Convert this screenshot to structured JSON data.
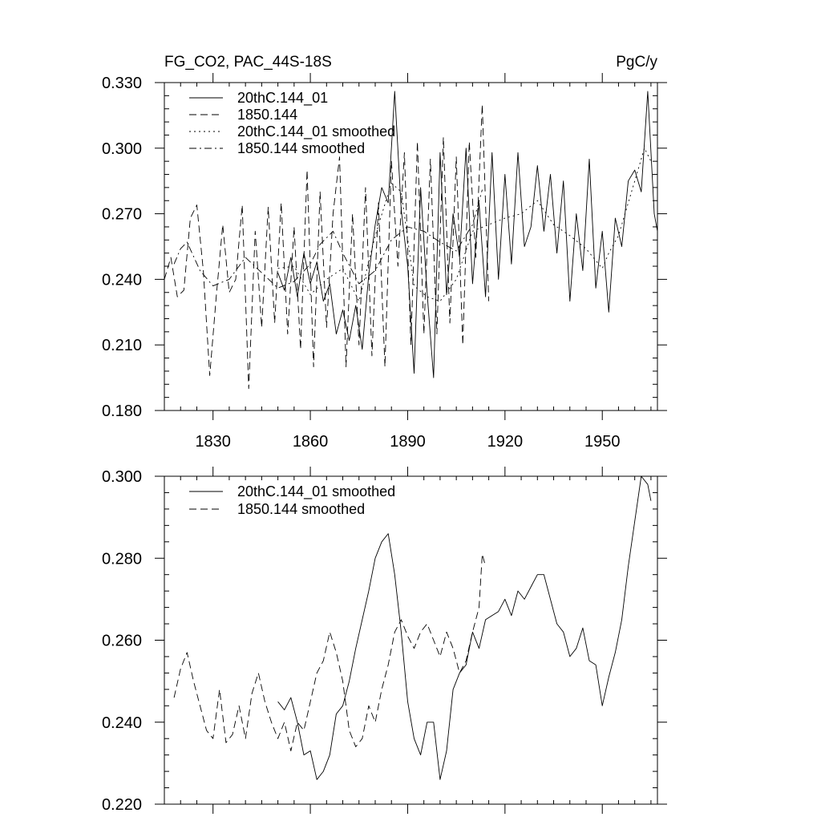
{
  "chart_data": [
    {
      "type": "line",
      "title_left": "FG_CO2, PAC_44S-18S",
      "title_right": "PgC/y",
      "xlabel": "",
      "ylabel": "",
      "xlim": [
        1815,
        1967
      ],
      "ylim": [
        0.18,
        0.33
      ],
      "xticks": [
        1830,
        1860,
        1890,
        1920,
        1950
      ],
      "yticks": [
        0.18,
        0.21,
        0.24,
        0.27,
        0.3,
        0.33
      ],
      "ytick_labels": [
        "0.180",
        "0.210",
        "0.240",
        "0.270",
        "0.300",
        "0.330"
      ],
      "legend": [
        "20thC.144_01",
        "1850.144",
        "20thC.144_01 smoothed",
        "1850.144 smoothed"
      ],
      "series": [
        {
          "name": "20thC.144_01",
          "style": "solid",
          "x": [
            1850,
            1852,
            1854,
            1856,
            1858,
            1860,
            1862,
            1864,
            1866,
            1868,
            1870,
            1872,
            1874,
            1876,
            1878,
            1880,
            1882,
            1884,
            1886,
            1888,
            1890,
            1892,
            1894,
            1896,
            1898,
            1900,
            1902,
            1904,
            1906,
            1908,
            1910,
            1912,
            1914,
            1916,
            1918,
            1920,
            1922,
            1924,
            1926,
            1928,
            1930,
            1932,
            1934,
            1936,
            1938,
            1940,
            1942,
            1944,
            1946,
            1948,
            1950,
            1952,
            1954,
            1956,
            1958,
            1960,
            1962,
            1964,
            1966,
            1967
          ],
          "values": [
            0.243,
            0.235,
            0.25,
            0.232,
            0.252,
            0.238,
            0.248,
            0.23,
            0.238,
            0.215,
            0.226,
            0.212,
            0.228,
            0.208,
            0.242,
            0.265,
            0.282,
            0.275,
            0.326,
            0.272,
            0.246,
            0.197,
            0.282,
            0.234,
            0.195,
            0.298,
            0.233,
            0.27,
            0.25,
            0.3,
            0.238,
            0.275,
            0.232,
            0.298,
            0.24,
            0.288,
            0.247,
            0.298,
            0.255,
            0.264,
            0.292,
            0.262,
            0.288,
            0.252,
            0.285,
            0.23,
            0.27,
            0.244,
            0.295,
            0.236,
            0.262,
            0.225,
            0.268,
            0.255,
            0.285,
            0.29,
            0.28,
            0.326,
            0.27,
            0.262
          ]
        },
        {
          "name": "1850.144",
          "style": "dashed",
          "x": [
            1815,
            1817,
            1819,
            1821,
            1823,
            1825,
            1827,
            1829,
            1831,
            1833,
            1835,
            1837,
            1839,
            1841,
            1843,
            1845,
            1847,
            1849,
            1851,
            1853,
            1855,
            1857,
            1859,
            1861,
            1863,
            1865,
            1867,
            1869,
            1871,
            1873,
            1875,
            1877,
            1879,
            1881,
            1883,
            1885,
            1887,
            1889,
            1891,
            1893,
            1895,
            1897,
            1899,
            1901,
            1903,
            1905,
            1907,
            1909,
            1911,
            1913,
            1915
          ],
          "values": [
            0.24,
            0.25,
            0.232,
            0.235,
            0.268,
            0.274,
            0.244,
            0.196,
            0.232,
            0.265,
            0.234,
            0.24,
            0.274,
            0.19,
            0.262,
            0.218,
            0.273,
            0.22,
            0.275,
            0.215,
            0.264,
            0.208,
            0.29,
            0.2,
            0.28,
            0.218,
            0.27,
            0.296,
            0.2,
            0.27,
            0.21,
            0.282,
            0.205,
            0.275,
            0.2,
            0.294,
            0.246,
            0.298,
            0.21,
            0.303,
            0.215,
            0.295,
            0.215,
            0.305,
            0.22,
            0.296,
            0.21,
            0.303,
            0.25,
            0.32,
            0.23
          ]
        },
        {
          "name": "20thC.144_01 smoothed",
          "style": "dotted",
          "x": [
            1850,
            1855,
            1860,
            1865,
            1870,
            1875,
            1880,
            1885,
            1888,
            1892,
            1896,
            1900,
            1905,
            1910,
            1915,
            1920,
            1925,
            1930,
            1935,
            1940,
            1945,
            1950,
            1952,
            1955,
            1960,
            1963,
            1965
          ],
          "values": [
            0.245,
            0.246,
            0.233,
            0.24,
            0.245,
            0.23,
            0.26,
            0.284,
            0.28,
            0.237,
            0.232,
            0.23,
            0.24,
            0.262,
            0.265,
            0.268,
            0.27,
            0.276,
            0.265,
            0.26,
            0.254,
            0.245,
            0.252,
            0.26,
            0.285,
            0.3,
            0.294
          ]
        },
        {
          "name": "1850.144 smoothed",
          "style": "dashdot",
          "x": [
            1818,
            1820,
            1822,
            1826,
            1830,
            1835,
            1840,
            1845,
            1850,
            1855,
            1860,
            1863,
            1867,
            1870,
            1875,
            1880,
            1885,
            1890,
            1895,
            1900,
            1905,
            1910,
            1913
          ],
          "values": [
            0.247,
            0.254,
            0.257,
            0.244,
            0.237,
            0.24,
            0.25,
            0.243,
            0.236,
            0.239,
            0.247,
            0.256,
            0.262,
            0.252,
            0.238,
            0.244,
            0.258,
            0.264,
            0.262,
            0.257,
            0.253,
            0.265,
            0.281
          ]
        }
      ]
    },
    {
      "type": "line",
      "xlim": [
        1815,
        1967
      ],
      "ylim": [
        0.22,
        0.3
      ],
      "xticks": [
        1830,
        1860,
        1890,
        1920,
        1950
      ],
      "yticks": [
        0.22,
        0.24,
        0.26,
        0.28,
        0.3
      ],
      "ytick_labels": [
        "0.220",
        "0.240",
        "0.260",
        "0.280",
        "0.300"
      ],
      "legend": [
        "20thC.144_01 smoothed",
        "1850.144 smoothed"
      ],
      "series": [
        {
          "name": "20thC.144_01 smoothed",
          "style": "solid",
          "x": [
            1850,
            1852,
            1854,
            1856,
            1858,
            1860,
            1862,
            1864,
            1866,
            1868,
            1870,
            1872,
            1874,
            1876,
            1878,
            1880,
            1882,
            1884,
            1886,
            1888,
            1890,
            1892,
            1894,
            1896,
            1898,
            1900,
            1902,
            1904,
            1906,
            1908,
            1910,
            1912,
            1914,
            1916,
            1918,
            1920,
            1922,
            1924,
            1926,
            1928,
            1930,
            1932,
            1934,
            1936,
            1938,
            1940,
            1942,
            1944,
            1946,
            1948,
            1950,
            1952,
            1954,
            1956,
            1958,
            1960,
            1962,
            1964,
            1965
          ],
          "values": [
            0.245,
            0.243,
            0.246,
            0.24,
            0.232,
            0.233,
            0.226,
            0.228,
            0.232,
            0.242,
            0.244,
            0.25,
            0.258,
            0.265,
            0.272,
            0.28,
            0.284,
            0.286,
            0.276,
            0.262,
            0.245,
            0.236,
            0.232,
            0.24,
            0.24,
            0.226,
            0.233,
            0.248,
            0.252,
            0.254,
            0.262,
            0.258,
            0.265,
            0.266,
            0.267,
            0.27,
            0.266,
            0.272,
            0.27,
            0.273,
            0.276,
            0.276,
            0.27,
            0.264,
            0.262,
            0.256,
            0.258,
            0.263,
            0.255,
            0.254,
            0.244,
            0.251,
            0.257,
            0.265,
            0.278,
            0.289,
            0.3,
            0.298,
            0.294
          ]
        },
        {
          "name": "1850.144 smoothed",
          "style": "dashed",
          "x": [
            1818,
            1820,
            1822,
            1824,
            1826,
            1828,
            1830,
            1832,
            1834,
            1836,
            1838,
            1840,
            1842,
            1844,
            1846,
            1848,
            1850,
            1852,
            1854,
            1856,
            1858,
            1860,
            1862,
            1864,
            1866,
            1868,
            1870,
            1872,
            1874,
            1876,
            1878,
            1880,
            1882,
            1884,
            1886,
            1888,
            1890,
            1892,
            1894,
            1896,
            1898,
            1900,
            1902,
            1904,
            1906,
            1908,
            1910,
            1912,
            1913,
            1914
          ],
          "values": [
            0.246,
            0.253,
            0.257,
            0.25,
            0.244,
            0.238,
            0.236,
            0.248,
            0.235,
            0.237,
            0.244,
            0.236,
            0.247,
            0.252,
            0.245,
            0.24,
            0.236,
            0.24,
            0.233,
            0.24,
            0.238,
            0.245,
            0.252,
            0.255,
            0.262,
            0.257,
            0.25,
            0.238,
            0.234,
            0.236,
            0.244,
            0.24,
            0.248,
            0.254,
            0.262,
            0.265,
            0.261,
            0.258,
            0.262,
            0.264,
            0.26,
            0.256,
            0.262,
            0.258,
            0.252,
            0.255,
            0.262,
            0.268,
            0.281,
            0.278
          ]
        }
      ]
    }
  ]
}
